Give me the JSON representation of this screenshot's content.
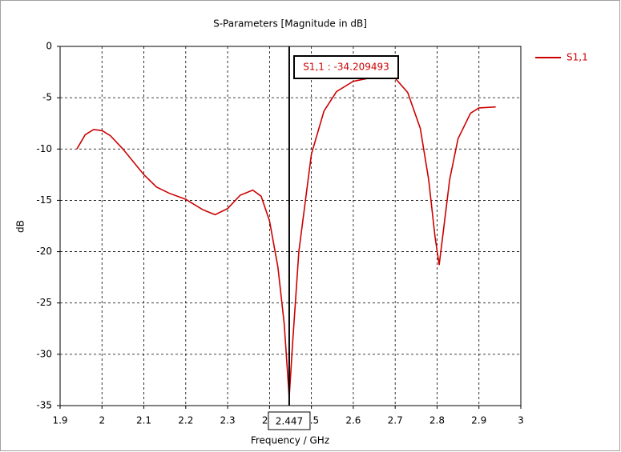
{
  "chart_data": {
    "type": "line",
    "title": "S-Parameters [Magnitude in dB]",
    "xlabel": "Frequency / GHz",
    "ylabel": "dB",
    "x": [
      1.94,
      1.96,
      1.98,
      2.0,
      2.02,
      2.05,
      2.1,
      2.13,
      2.16,
      2.2,
      2.24,
      2.27,
      2.3,
      2.33,
      2.36,
      2.38,
      2.4,
      2.42,
      2.435,
      2.447,
      2.455,
      2.47,
      2.5,
      2.53,
      2.56,
      2.6,
      2.65,
      2.7,
      2.73,
      2.76,
      2.78,
      2.795,
      2.805,
      2.815,
      2.83,
      2.85,
      2.88,
      2.9,
      2.94
    ],
    "series": [
      {
        "name": "S1,1",
        "color": "#cc0000",
        "values": [
          -10,
          -8.6,
          -8.1,
          -8.2,
          -8.7,
          -10,
          -12.5,
          -13.7,
          -14.3,
          -14.9,
          -15.9,
          -16.4,
          -15.8,
          -14.5,
          -14.0,
          -14.6,
          -17,
          -21.5,
          -27,
          -34.2,
          -29,
          -20,
          -10.5,
          -6.3,
          -4.4,
          -3.4,
          -3.0,
          -3.1,
          -4.5,
          -8,
          -13,
          -18.5,
          -21.3,
          -18,
          -13,
          -9,
          -6.5,
          -6,
          -5.9
        ]
      }
    ],
    "xlim": [
      1.9,
      3
    ],
    "xticks": [
      1.9,
      2,
      2.1,
      2.2,
      2.3,
      2.4,
      2.5,
      2.6,
      2.7,
      2.8,
      2.9,
      3
    ],
    "ylim": [
      -35,
      0
    ],
    "yticks": [
      0,
      -5,
      -10,
      -15,
      -20,
      -25,
      -30,
      -35
    ],
    "grid": true,
    "legend": "right",
    "marker_x": 2.447,
    "marker_annotation": "S1,1 : -34.209493"
  }
}
